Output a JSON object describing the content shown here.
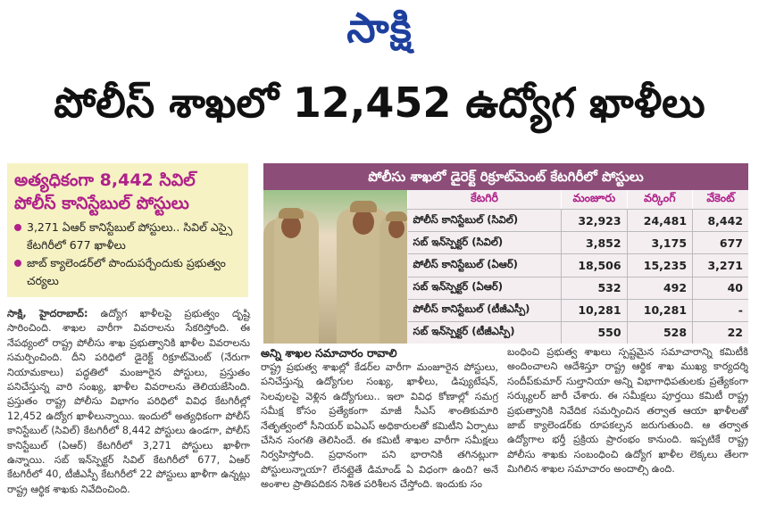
{
  "masthead": {
    "logo_text": "సాక్షి"
  },
  "headline": "పోలీస్ శాఖలో 12,452 ఉద్యోగ ఖాళీలు",
  "highlight_box": {
    "title": "అత్యధికంగా 8,442 సివిల్ పోలీస్ కానిస్టేబుల్ పోస్టులు",
    "bullets": [
      "3,271 ఏఆర్ కానిస్టేబుల్ పోస్టులు.. సివిల్ ఎస్సై కేటగిరీలో 677 ఖాళీలు",
      "జాబ్ క్యాలెండర్‌లో పొందుపర్చేందుకు ప్రభుత్వం చర్యలు"
    ]
  },
  "table": {
    "title": "పోలీసు శాఖలో డైరెక్ట్ రిక్రూట్‌మెంట్ కేటగిరీలో పోస్టులు",
    "headers": [
      "కేటగిరీ",
      "మంజూరు",
      "వర్కింగ్",
      "వేకెంట్"
    ],
    "rows": [
      [
        "పోలీస్ కానిస్టేబుల్ (సివిల్)",
        "32,923",
        "24,481",
        "8,442"
      ],
      [
        "సబ్ ఇన్‌స్పెక్టర్ (సివిల్)",
        "3,852",
        "3,175",
        "677"
      ],
      [
        "పోలీస్ కానిస్టేబుల్ (ఏఆర్)",
        "18,506",
        "15,235",
        "3,271"
      ],
      [
        "సబ్ ఇన్‌స్పెక్టర్ (ఏఆర్)",
        "532",
        "492",
        "40"
      ],
      [
        "పోలీస్ కానిస్టేబుల్ (టీజీఎస్పీ)",
        "10,281",
        "10,281",
        "-"
      ],
      [
        "సబ్ ఇన్‌స్పెక్టర్ (టీజీఎస్పీ)",
        "550",
        "528",
        "22"
      ]
    ]
  },
  "article": {
    "dateline": "సాక్షి, హైదరాబాద్:",
    "col1": "ఉద్యోగ ఖాళీలపై ప్రభుత్వం దృష్టి సారించింది. శాఖల వారీగా వివరాలను సేకరిస్తోంది. ఈ నేపథ్యంలో రాష్ట్ర పోలీసు శాఖ ప్రభుత్వానికి ఖాళీల వివరాలను సమర్పించింది. దీని పరిధిలో డైరెక్ట్ రిక్రూట్‌మెంట్ (నేరుగా నియామకాలు) పద్ధతిలో మంజూరైన పోస్టులు, ప్రస్తుతం పనిచేస్తున్న వారి సంఖ్య, ఖాళీల వివరాలను తెలియజేసింది. ప్రస్తుతం రాష్ట్ర పోలీసు విభాగం పరిధిలో వివిధ కేటగిరీల్లో 12,452 ఉద్యోగ ఖాళీలున్నాయి. ఇందులో అత్యధికంగా పోలీస్ కానిస్టేబుల్ (సివిల్) కేటగిరీలో 8,442 పోస్టులు ఉండగా, పోలీస్ కానిస్టేబుల్ (ఏఆర్) కేటగిరీలో 3,271 పోస్టులు ఖాళీగా ఉన్నాయి. సబ్ ఇన్‌స్పెక్టర్ సివిల్ కేటగిరీలో 677, ఏఆర్ కేటగిరీలో 40, టీజీఎస్పీ కేటగిరీలో 22 పోస్టులు ఖాళీగా ఉన్నట్లు రాష్ట్ర ఆర్థిక శాఖకు నివేదించింది.",
    "subheading": "అన్ని శాఖల సమాచారం రావాలి",
    "col2": "రాష్ట్ర ప్రభుత్వ శాఖల్లో కేడర్‌ల వారీగా మంజూరైన పోస్టులు, పనిచేస్తున్న ఉద్యోగుల సంఖ్య, ఖాళీలు, డిప్యుటేషన్, సెలవులపై వెళ్లిన ఉద్యోగులు.. ఇలా వివిధ కోణాల్లో సమగ్ర సమీక్ష కోసం ప్రత్యేకంగా మాజీ సీఎస్ శాంతికుమారి నేతృత్వంలో సీనియర్ ఐఏఎస్ అధికారులతో కమిటీని ఏర్పాటు చేసిన సంగతి తెలిసిందే. ఈ కమిటీ శాఖల వారీగా సమీక్షలు నిర్వహిస్తోంది. ప్రధానంగా పని భారానికి తగినట్లుగా పోస్టులున్నాయా? లేనట్లైతే డిమాండ్ ఏ విధంగా ఉంది? అనే అంశాల ప్రాతిపదికన నిశిత పరిశీలన చేస్తోంది. ఇందుకు సం",
    "col3": "బంధించి ప్రభుత్వ శాఖలు స్పష్టమైన సమాచారాన్ని కమిటీకి అందించాలని ఆదేశిస్తూ రాష్ట్ర ఆర్థిక శాఖ ముఖ్య కార్యదర్శి సందీప్‌కుమార్ సుల్తానియా అన్ని విభాగాధిపతులకు ప్రత్యేకంగా సర్క్యులర్ జారీ చేశారు. ఈ సమీక్షలు పూర్తయి కమిటీ రాష్ట్ర ప్రభుత్వానికి నివేదిక సమర్పించిన తర్వాత ఆయా ఖాళీలతో జాబ్ క్యాలెండర్‌కు రూపకల్పన జరుగుతుంది. ఆ తర్వాత ఉద్యోగాల భర్తీ ప్రక్రియ ప్రారంభం కానుంది. ఇప్పటికే రాష్ట్ర పోలీసు శాఖకు సంబంధించి ఉద్యోగ ఖాళీల లెక్కలు తేలగా మిగిలిన శాఖల సమాచారం అందాల్సి ఉంది."
  },
  "colors": {
    "logo": "#1d3f9e",
    "accent_magenta": "#b0208a",
    "table_title_bg": "#8c4d78",
    "highlight_bg": "#f6f2c4"
  }
}
